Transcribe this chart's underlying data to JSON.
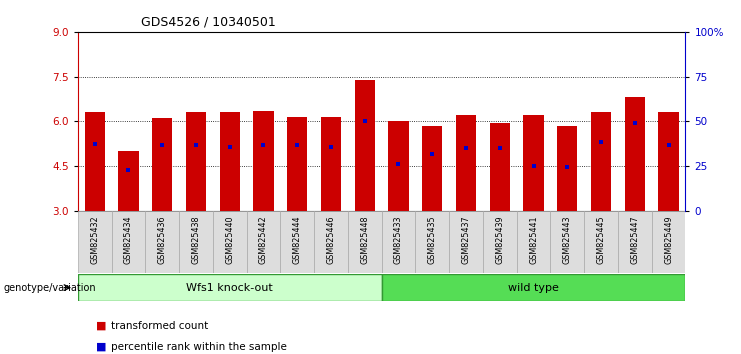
{
  "title": "GDS4526 / 10340501",
  "samples": [
    "GSM825432",
    "GSM825434",
    "GSM825436",
    "GSM825438",
    "GSM825440",
    "GSM825442",
    "GSM825444",
    "GSM825446",
    "GSM825448",
    "GSM825433",
    "GSM825435",
    "GSM825437",
    "GSM825439",
    "GSM825441",
    "GSM825443",
    "GSM825445",
    "GSM825447",
    "GSM825449"
  ],
  "bar_values": [
    6.3,
    5.0,
    6.1,
    6.3,
    6.3,
    6.35,
    6.15,
    6.15,
    7.4,
    6.0,
    5.85,
    6.2,
    5.95,
    6.2,
    5.85,
    6.3,
    6.8,
    6.3
  ],
  "blue_values": [
    5.25,
    4.35,
    5.2,
    5.2,
    5.15,
    5.2,
    5.2,
    5.15,
    6.0,
    4.55,
    4.9,
    5.1,
    5.1,
    4.5,
    4.45,
    5.3,
    5.95,
    5.2
  ],
  "bar_bottom": 3.0,
  "ylim_left": [
    3.0,
    9.0
  ],
  "yticks_left": [
    3.0,
    4.5,
    6.0,
    7.5,
    9.0
  ],
  "ylim_right": [
    0,
    100
  ],
  "yticks_right": [
    0,
    25,
    50,
    75,
    100
  ],
  "ytick_right_labels": [
    "0",
    "25",
    "50",
    "75",
    "100%"
  ],
  "bar_color": "#cc0000",
  "blue_color": "#0000cc",
  "grid_lines": [
    4.5,
    6.0,
    7.5
  ],
  "knock_out_label": "Wfs1 knock-out",
  "wild_type_label": "wild type",
  "knock_out_count": 9,
  "wild_type_count": 9,
  "genotype_label": "genotype/variation",
  "legend_red": "transformed count",
  "legend_blue": "percentile rank within the sample",
  "ko_bg_color": "#ccffcc",
  "wt_bg_color": "#55dd55",
  "tick_box_color": "#dddddd",
  "left_color": "#cc0000",
  "right_color": "#0000cc"
}
